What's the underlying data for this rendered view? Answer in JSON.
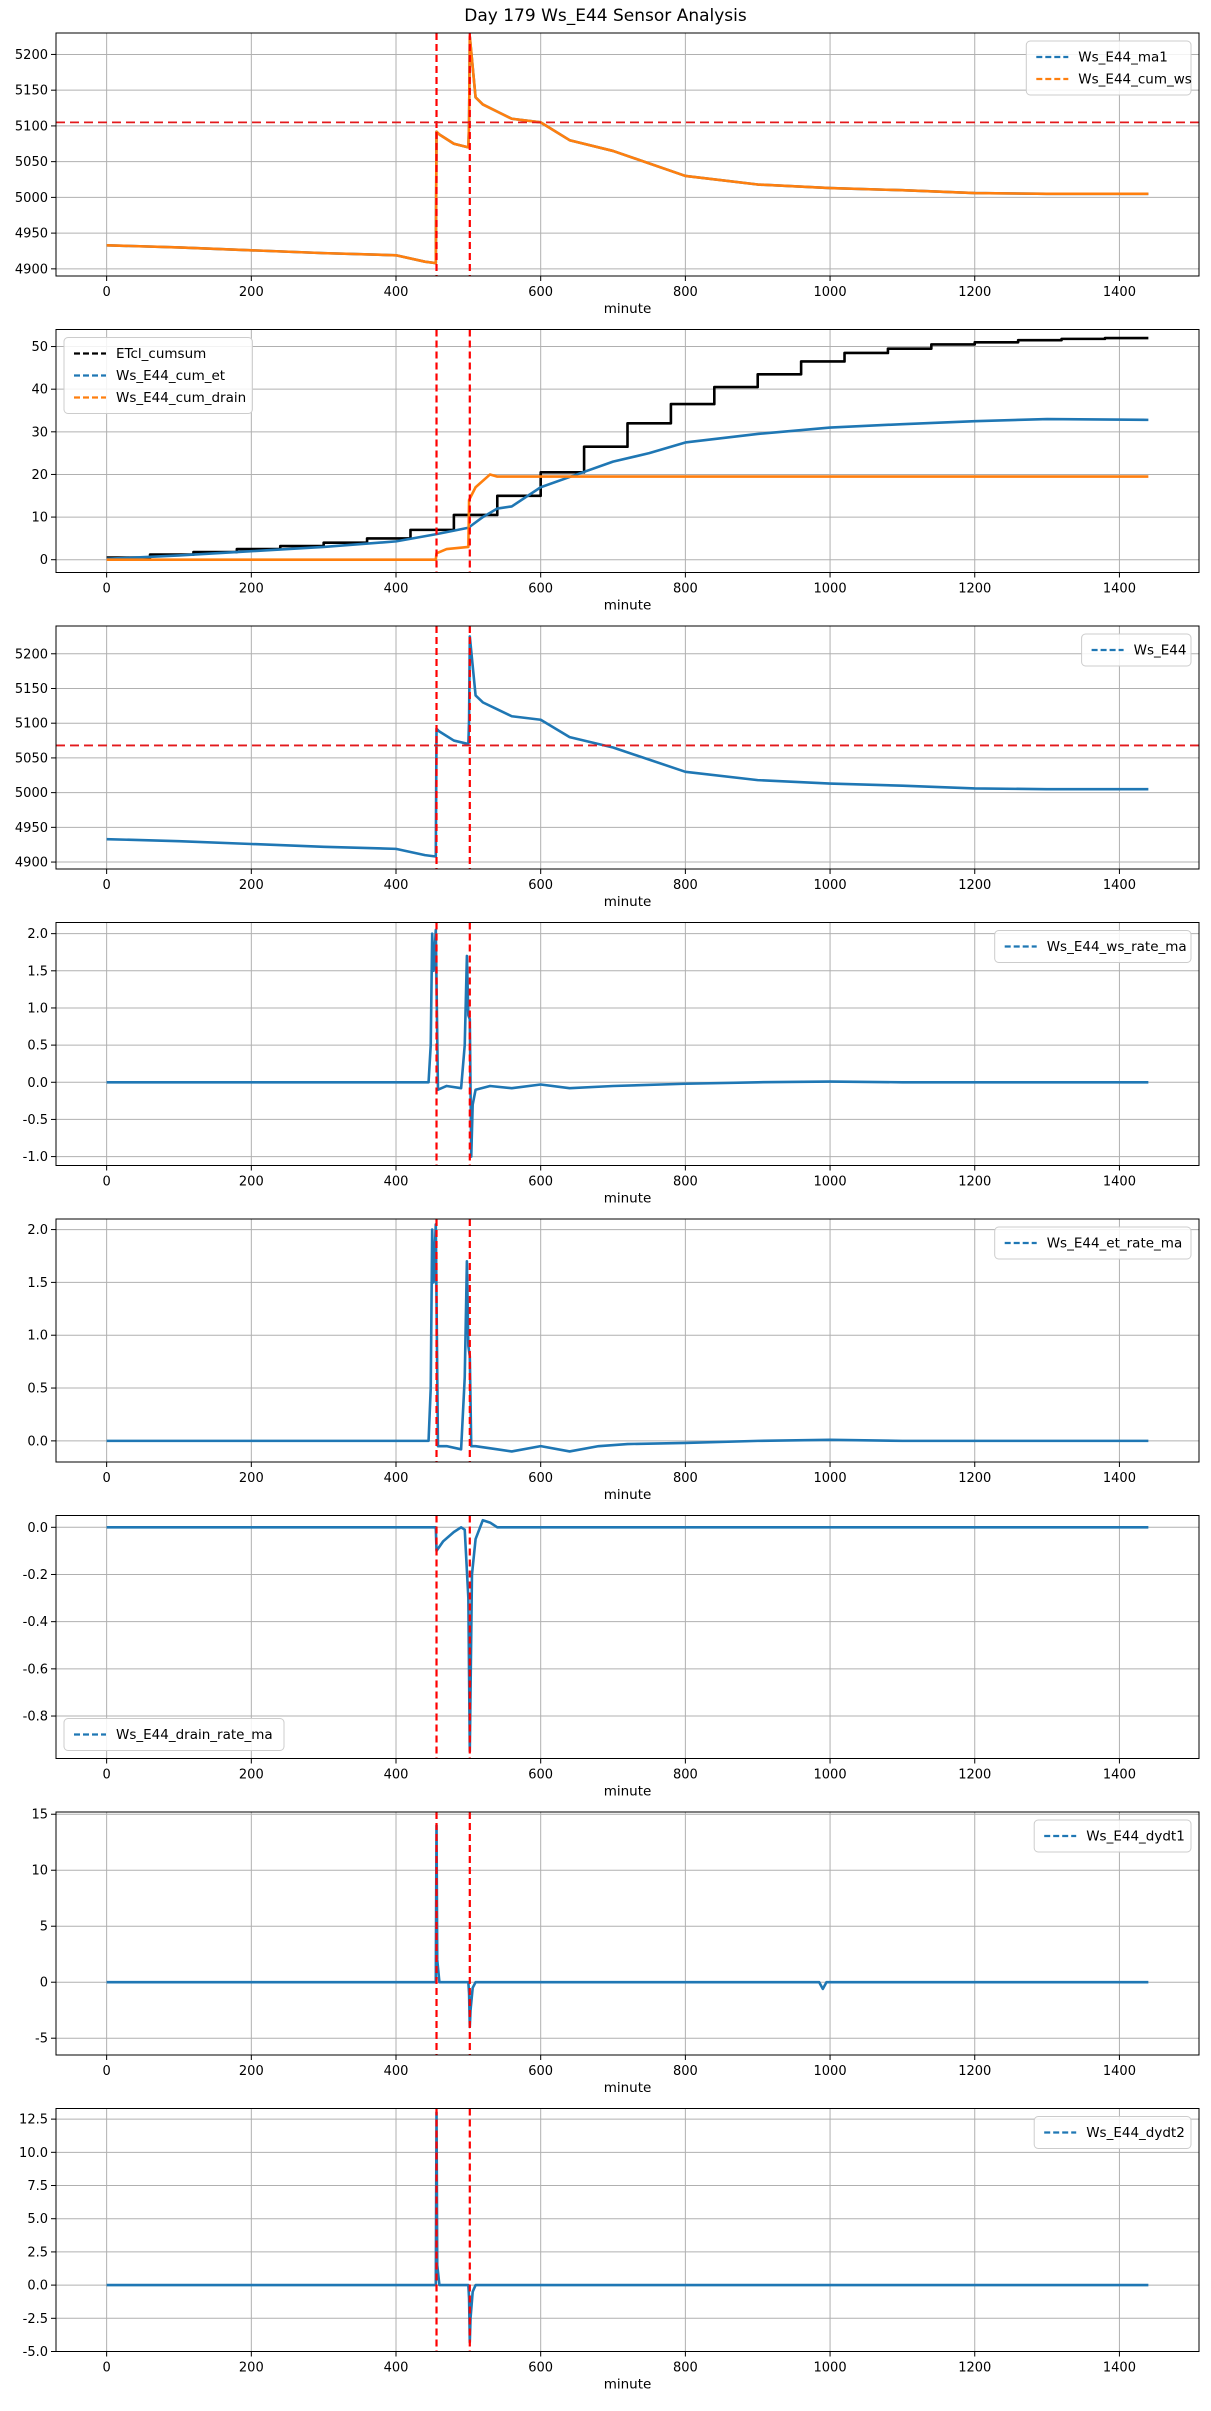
{
  "figure": {
    "title": "Day 179 Ws_E44 Sensor Analysis"
  },
  "chart_data": [
    {
      "type": "line",
      "title": "",
      "xlabel": "minute",
      "ylabel": "",
      "xlim": [
        -70,
        1510
      ],
      "ylim": [
        4890,
        5230
      ],
      "xticks": [
        0,
        200,
        400,
        600,
        800,
        1000,
        1200,
        1400
      ],
      "yticks": [
        4900,
        4950,
        5000,
        5050,
        5100,
        5150,
        5200
      ],
      "ytick_labels": [
        "4900",
        "4950",
        "5000",
        "5050",
        "5100",
        "5150",
        "5200"
      ],
      "grid": true,
      "legend_position": "top-right",
      "vlines": [
        456,
        502
      ],
      "hline": 5105,
      "series": [
        {
          "name": "Ws_E44_ma1",
          "color": "#1f77b4",
          "x": [
            0,
            100,
            200,
            300,
            400,
            440,
            455,
            456,
            460,
            480,
            500,
            501,
            502,
            510,
            520,
            540,
            560,
            600,
            640,
            700,
            800,
            900,
            1000,
            1100,
            1200,
            1300,
            1440
          ],
          "y": [
            4933,
            4930,
            4926,
            4922,
            4919,
            4910,
            4908,
            5092,
            5088,
            5075,
            5070,
            5105,
            5225,
            5140,
            5130,
            5120,
            5110,
            5105,
            5080,
            5065,
            5030,
            5018,
            5013,
            5010,
            5006,
            5005,
            5005
          ]
        },
        {
          "name": "Ws_E44_cum_ws",
          "color": "#ff7f0e",
          "x": [
            0,
            100,
            200,
            300,
            400,
            440,
            455,
            456,
            460,
            480,
            500,
            501,
            502,
            510,
            520,
            540,
            560,
            600,
            640,
            700,
            800,
            900,
            1000,
            1100,
            1200,
            1300,
            1440
          ],
          "y": [
            4933,
            4930,
            4926,
            4922,
            4919,
            4910,
            4908,
            5092,
            5088,
            5075,
            5070,
            5105,
            5225,
            5140,
            5130,
            5120,
            5110,
            5105,
            5080,
            5065,
            5030,
            5018,
            5013,
            5010,
            5006,
            5005,
            5005
          ]
        }
      ]
    },
    {
      "type": "line",
      "title": "",
      "xlabel": "minute",
      "ylabel": "",
      "xlim": [
        -70,
        1510
      ],
      "ylim": [
        -3,
        54
      ],
      "xticks": [
        0,
        200,
        400,
        600,
        800,
        1000,
        1200,
        1400
      ],
      "yticks": [
        0,
        10,
        20,
        30,
        40,
        50
      ],
      "ytick_labels": [
        "0",
        "10",
        "20",
        "30",
        "40",
        "50"
      ],
      "grid": true,
      "legend_position": "top-left",
      "vlines": [
        456,
        502
      ],
      "series": [
        {
          "name": "ETcl_cumsum",
          "color": "#000000",
          "step": true,
          "x": [
            0,
            60,
            120,
            180,
            240,
            300,
            360,
            420,
            480,
            540,
            600,
            660,
            720,
            780,
            840,
            900,
            960,
            1020,
            1080,
            1140,
            1200,
            1260,
            1320,
            1380,
            1440
          ],
          "y": [
            0.5,
            1.2,
            1.8,
            2.5,
            3.2,
            4.0,
            5.0,
            7.0,
            10.5,
            15.0,
            20.5,
            26.5,
            32.0,
            36.5,
            40.5,
            43.5,
            46.5,
            48.5,
            49.5,
            50.5,
            51.0,
            51.5,
            51.8,
            52.0,
            52.0
          ]
        },
        {
          "name": "Ws_E44_cum_et",
          "color": "#1f77b4",
          "x": [
            0,
            100,
            200,
            300,
            400,
            456,
            500,
            520,
            540,
            560,
            600,
            650,
            700,
            750,
            800,
            900,
            1000,
            1100,
            1200,
            1300,
            1440
          ],
          "y": [
            0.2,
            1.0,
            2.0,
            3.0,
            4.3,
            6.0,
            7.5,
            10.0,
            12.0,
            12.5,
            17.0,
            20.0,
            23.0,
            25.0,
            27.5,
            29.5,
            31.0,
            31.8,
            32.5,
            33.0,
            32.8
          ]
        },
        {
          "name": "Ws_E44_cum_drain",
          "color": "#ff7f0e",
          "x": [
            0,
            455,
            456,
            470,
            500,
            501,
            510,
            530,
            540,
            600,
            1440
          ],
          "y": [
            0,
            0,
            1.5,
            2.5,
            3.0,
            14,
            17,
            20,
            19.5,
            19.5,
            19.5
          ]
        }
      ]
    },
    {
      "type": "line",
      "title": "",
      "xlabel": "minute",
      "ylabel": "",
      "xlim": [
        -70,
        1510
      ],
      "ylim": [
        4890,
        5240
      ],
      "xticks": [
        0,
        200,
        400,
        600,
        800,
        1000,
        1200,
        1400
      ],
      "yticks": [
        4900,
        4950,
        5000,
        5050,
        5100,
        5150,
        5200
      ],
      "ytick_labels": [
        "4900",
        "4950",
        "5000",
        "5050",
        "5100",
        "5150",
        "5200"
      ],
      "grid": true,
      "legend_position": "top-right",
      "vlines": [
        456,
        502
      ],
      "hline": 5068,
      "series": [
        {
          "name": "Ws_E44",
          "color": "#1f77b4",
          "x": [
            0,
            100,
            200,
            300,
            400,
            440,
            455,
            456,
            460,
            480,
            500,
            501,
            502,
            510,
            520,
            540,
            560,
            600,
            640,
            700,
            800,
            900,
            1000,
            1100,
            1200,
            1300,
            1440
          ],
          "y": [
            4933,
            4930,
            4926,
            4922,
            4919,
            4910,
            4908,
            5092,
            5088,
            5075,
            5070,
            5105,
            5225,
            5140,
            5130,
            5120,
            5110,
            5105,
            5080,
            5065,
            5030,
            5018,
            5013,
            5010,
            5006,
            5005,
            5005
          ]
        }
      ]
    },
    {
      "type": "line",
      "title": "",
      "xlabel": "minute",
      "ylabel": "",
      "xlim": [
        -70,
        1510
      ],
      "ylim": [
        -1.12,
        2.15
      ],
      "xticks": [
        0,
        200,
        400,
        600,
        800,
        1000,
        1200,
        1400
      ],
      "yticks": [
        -1.0,
        -0.5,
        0.0,
        0.5,
        1.0,
        1.5,
        2.0
      ],
      "ytick_labels": [
        "-1.0",
        "-0.5",
        "0.0",
        "0.5",
        "1.0",
        "1.5",
        "2.0"
      ],
      "grid": true,
      "legend_position": "top-right",
      "vlines": [
        456,
        502
      ],
      "series": [
        {
          "name": "Ws_E44_ws_rate_ma",
          "color": "#1f77b4",
          "x": [
            0,
            100,
            200,
            300,
            400,
            445,
            448,
            450,
            452,
            455,
            458,
            470,
            490,
            495,
            498,
            500,
            502,
            504,
            506,
            510,
            530,
            560,
            600,
            640,
            700,
            800,
            900,
            1000,
            1100,
            1200,
            1300,
            1440
          ],
          "y": [
            0,
            0,
            0,
            0,
            0,
            0,
            0.5,
            2.0,
            1.5,
            2.05,
            -0.1,
            -0.05,
            -0.08,
            0.5,
            1.7,
            0.9,
            0.85,
            -1.0,
            -0.3,
            -0.1,
            -0.05,
            -0.08,
            -0.03,
            -0.08,
            -0.05,
            -0.02,
            0,
            0.01,
            0,
            0,
            0,
            0
          ]
        }
      ]
    },
    {
      "type": "line",
      "title": "",
      "xlabel": "minute",
      "ylabel": "",
      "xlim": [
        -70,
        1510
      ],
      "ylim": [
        -0.2,
        2.1
      ],
      "xticks": [
        0,
        200,
        400,
        600,
        800,
        1000,
        1200,
        1400
      ],
      "yticks": [
        0.0,
        0.5,
        1.0,
        1.5,
        2.0
      ],
      "ytick_labels": [
        "0.0",
        "0.5",
        "1.0",
        "1.5",
        "2.0"
      ],
      "grid": true,
      "legend_position": "top-right",
      "vlines": [
        456,
        502
      ],
      "series": [
        {
          "name": "Ws_E44_et_rate_ma",
          "color": "#1f77b4",
          "x": [
            0,
            100,
            200,
            300,
            400,
            445,
            448,
            450,
            452,
            455,
            458,
            470,
            490,
            495,
            498,
            500,
            502,
            504,
            510,
            540,
            560,
            600,
            640,
            680,
            720,
            800,
            900,
            1000,
            1100,
            1200,
            1300,
            1440
          ],
          "y": [
            0,
            0,
            0,
            0,
            0,
            0,
            0.5,
            2.0,
            1.5,
            2.05,
            -0.05,
            -0.05,
            -0.08,
            0.6,
            1.7,
            0.9,
            0.8,
            -0.05,
            -0.05,
            -0.08,
            -0.1,
            -0.05,
            -0.1,
            -0.05,
            -0.03,
            -0.02,
            0,
            0.01,
            0,
            0,
            0,
            0
          ]
        }
      ]
    },
    {
      "type": "line",
      "title": "",
      "xlabel": "minute",
      "ylabel": "",
      "xlim": [
        -70,
        1510
      ],
      "ylim": [
        -0.98,
        0.05
      ],
      "xticks": [
        0,
        200,
        400,
        600,
        800,
        1000,
        1200,
        1400
      ],
      "yticks": [
        -0.8,
        -0.6,
        -0.4,
        -0.2,
        0.0
      ],
      "ytick_labels": [
        "-0.8",
        "-0.6",
        "-0.4",
        "-0.2",
        "0.0"
      ],
      "grid": true,
      "legend_position": "bottom-left",
      "vlines": [
        456,
        502
      ],
      "series": [
        {
          "name": "Ws_E44_drain_rate_ma",
          "color": "#1f77b4",
          "x": [
            0,
            400,
            455,
            456,
            465,
            480,
            490,
            495,
            500,
            502,
            505,
            510,
            520,
            530,
            540,
            1440
          ],
          "y": [
            0,
            0,
            0,
            -0.1,
            -0.06,
            -0.02,
            0.0,
            -0.01,
            -0.3,
            -0.95,
            -0.2,
            -0.05,
            0.03,
            0.02,
            0,
            0
          ]
        }
      ]
    },
    {
      "type": "line",
      "title": "",
      "xlabel": "minute",
      "ylabel": "",
      "xlim": [
        -70,
        1510
      ],
      "ylim": [
        -6.5,
        15.2
      ],
      "xticks": [
        0,
        200,
        400,
        600,
        800,
        1000,
        1200,
        1400
      ],
      "yticks": [
        -5,
        0,
        5,
        10,
        15
      ],
      "ytick_labels": [
        "-5",
        "0",
        "5",
        "10",
        "15"
      ],
      "grid": true,
      "legend_position": "top-right",
      "vlines": [
        456,
        502
      ],
      "series": [
        {
          "name": "Ws_E44_dydt1",
          "color": "#1f77b4",
          "x": [
            0,
            200,
            400,
            455,
            456,
            457,
            460,
            500,
            501,
            502,
            503,
            506,
            510,
            600,
            800,
            985,
            990,
            995,
            1200,
            1440
          ],
          "y": [
            0,
            0,
            0,
            0,
            14,
            2,
            0,
            0,
            -1,
            -4,
            -2.5,
            -0.5,
            0,
            0,
            0,
            0,
            -0.6,
            0,
            0,
            0
          ]
        }
      ]
    },
    {
      "type": "line",
      "title": "",
      "xlabel": "minute",
      "ylabel": "",
      "xlim": [
        -70,
        1510
      ],
      "ylim": [
        -5.0,
        13.3
      ],
      "xticks": [
        0,
        200,
        400,
        600,
        800,
        1000,
        1200,
        1400
      ],
      "yticks": [
        -5.0,
        -2.5,
        0.0,
        2.5,
        5.0,
        7.5,
        10.0,
        12.5
      ],
      "ytick_labels": [
        "-5.0",
        "-2.5",
        "0.0",
        "2.5",
        "5.0",
        "7.5",
        "10.0",
        "12.5"
      ],
      "grid": true,
      "legend_position": "top-right",
      "vlines": [
        456,
        502
      ],
      "series": [
        {
          "name": "Ws_E44_dydt2",
          "color": "#1f77b4",
          "x": [
            0,
            200,
            400,
            455,
            456,
            457,
            460,
            500,
            501,
            502,
            503,
            506,
            510,
            600,
            800,
            1000,
            1200,
            1440
          ],
          "y": [
            0,
            0,
            0,
            0,
            13,
            1.5,
            0,
            0,
            -1,
            -4.3,
            -2.5,
            -0.5,
            0,
            0,
            0,
            0,
            0,
            0
          ]
        }
      ]
    }
  ]
}
